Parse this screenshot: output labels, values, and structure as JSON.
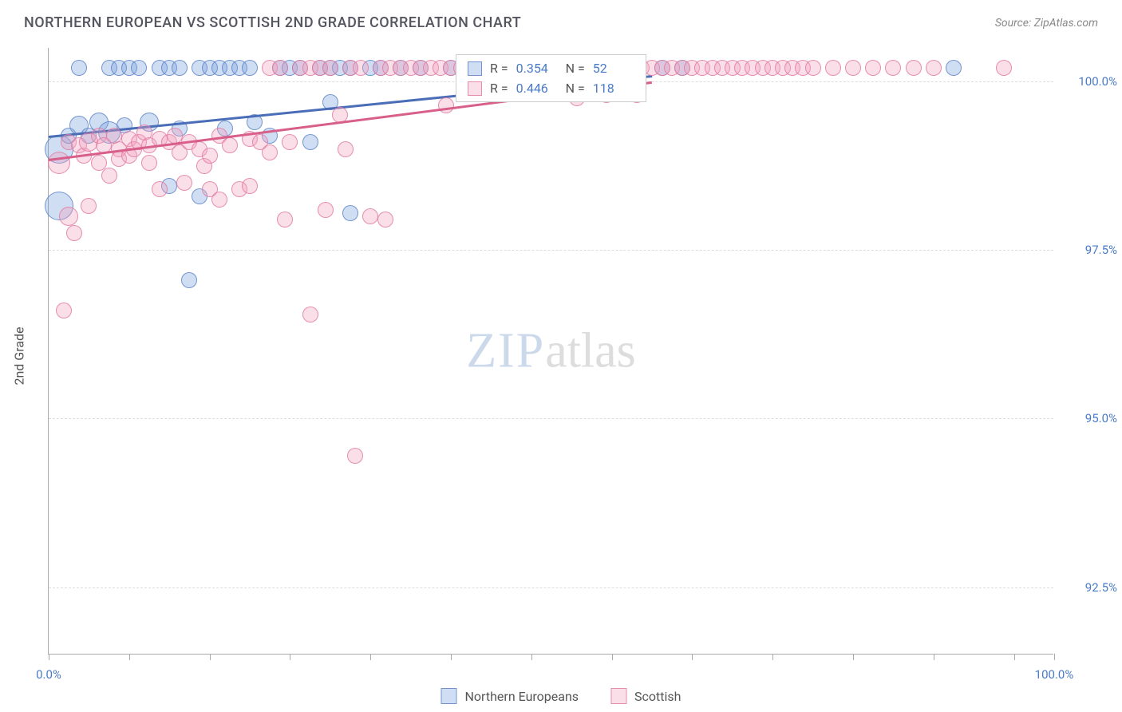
{
  "title": "NORTHERN EUROPEAN VS SCOTTISH 2ND GRADE CORRELATION CHART",
  "source": "Source: ZipAtlas.com",
  "ylabel": "2nd Grade",
  "watermark": {
    "part1": "ZIP",
    "part2": "atlas"
  },
  "chart": {
    "type": "scatter",
    "xlim": [
      0,
      100
    ],
    "ylim": [
      91.5,
      100.5
    ],
    "yticks": [
      {
        "v": 100.0,
        "label": "100.0%"
      },
      {
        "v": 97.5,
        "label": "97.5%"
      },
      {
        "v": 95.0,
        "label": "95.0%"
      },
      {
        "v": 92.5,
        "label": "92.5%"
      }
    ],
    "xticks_major": [
      0,
      100
    ],
    "xtick_labels": {
      "0": "0.0%",
      "100": "100.0%"
    },
    "xticks_minor": [
      8,
      16,
      24,
      32,
      40,
      48,
      56,
      64,
      72,
      80,
      88,
      96
    ],
    "grid_color": "#dddddd",
    "background_color": "#ffffff",
    "series": [
      {
        "name": "Northern Europeans",
        "fill": "rgba(120, 160, 220, 0.35)",
        "stroke": "rgba(90, 130, 200, 0.8)",
        "line_color": "#4a6db8",
        "r_label": "R =",
        "r_value": "0.354",
        "n_label": "N =",
        "n_value": "52",
        "trend": {
          "x1": 0,
          "y1": 99.2,
          "x2": 60,
          "y2": 100.1
        },
        "marker_radius": 10,
        "points": [
          [
            1,
            99.0,
            18
          ],
          [
            1,
            98.15,
            18
          ],
          [
            2,
            99.2,
            10
          ],
          [
            3,
            100.2,
            10
          ],
          [
            3,
            99.35,
            12
          ],
          [
            4,
            99.2,
            10
          ],
          [
            5,
            99.4,
            12
          ],
          [
            6,
            100.2,
            10
          ],
          [
            6,
            99.25,
            14
          ],
          [
            7,
            100.2,
            10
          ],
          [
            7.5,
            99.35,
            10
          ],
          [
            8,
            100.2,
            10
          ],
          [
            9,
            100.2,
            10
          ],
          [
            10,
            99.4,
            12
          ],
          [
            11,
            100.2,
            10
          ],
          [
            12,
            100.2,
            10
          ],
          [
            12,
            98.45,
            10
          ],
          [
            13,
            100.2,
            10
          ],
          [
            13,
            99.3,
            10
          ],
          [
            14,
            97.05,
            10
          ],
          [
            15,
            100.2,
            10
          ],
          [
            15,
            98.3,
            10
          ],
          [
            16,
            100.2,
            10
          ],
          [
            17,
            100.2,
            10
          ],
          [
            17.5,
            99.3,
            10
          ],
          [
            18,
            100.2,
            10
          ],
          [
            19,
            100.2,
            10
          ],
          [
            20,
            100.2,
            10
          ],
          [
            20.5,
            99.4,
            10
          ],
          [
            22,
            99.2,
            10
          ],
          [
            23,
            100.2,
            10
          ],
          [
            24,
            100.2,
            10
          ],
          [
            25,
            100.2,
            10
          ],
          [
            26,
            99.1,
            10
          ],
          [
            27,
            100.2,
            10
          ],
          [
            28,
            100.2,
            10
          ],
          [
            28,
            99.7,
            10
          ],
          [
            29,
            100.2,
            10
          ],
          [
            30,
            100.2,
            10
          ],
          [
            30,
            98.05,
            10
          ],
          [
            32,
            100.2,
            10
          ],
          [
            33,
            100.2,
            10
          ],
          [
            35,
            100.2,
            10
          ],
          [
            37,
            100.2,
            10
          ],
          [
            40,
            100.2,
            10
          ],
          [
            42,
            100.2,
            10
          ],
          [
            44,
            100.2,
            10
          ],
          [
            48,
            100.2,
            10
          ],
          [
            52,
            100.2,
            10
          ],
          [
            61,
            100.2,
            10
          ],
          [
            63,
            100.2,
            10
          ],
          [
            90,
            100.2,
            10
          ]
        ]
      },
      {
        "name": "Scottish",
        "fill": "rgba(240, 160, 190, 0.35)",
        "stroke": "rgba(225, 120, 160, 0.8)",
        "line_color": "#d85f8a",
        "r_label": "R =",
        "r_value": "0.446",
        "n_label": "N =",
        "n_value": "118",
        "trend": {
          "x1": 0,
          "y1": 98.85,
          "x2": 60,
          "y2": 100.0
        },
        "marker_radius": 10,
        "points": [
          [
            1,
            98.8,
            14
          ],
          [
            1.5,
            96.6,
            10
          ],
          [
            2,
            98.0,
            12
          ],
          [
            2,
            99.1,
            10
          ],
          [
            2.5,
            97.75,
            10
          ],
          [
            3,
            99.05,
            10
          ],
          [
            3.5,
            98.9,
            10
          ],
          [
            4,
            99.1,
            12
          ],
          [
            4,
            98.15,
            10
          ],
          [
            5,
            99.2,
            10
          ],
          [
            5,
            98.8,
            10
          ],
          [
            5.5,
            99.05,
            10
          ],
          [
            6,
            98.6,
            10
          ],
          [
            6.5,
            99.2,
            10
          ],
          [
            7,
            99.0,
            10
          ],
          [
            7,
            98.85,
            10
          ],
          [
            8,
            99.15,
            10
          ],
          [
            8,
            98.9,
            10
          ],
          [
            8.5,
            99.0,
            10
          ],
          [
            9,
            99.1,
            10
          ],
          [
            9.5,
            99.25,
            10
          ],
          [
            10,
            99.05,
            10
          ],
          [
            10,
            98.8,
            10
          ],
          [
            11,
            99.15,
            10
          ],
          [
            11,
            98.4,
            10
          ],
          [
            12,
            99.1,
            10
          ],
          [
            12.5,
            99.2,
            10
          ],
          [
            13,
            98.95,
            10
          ],
          [
            13.5,
            98.5,
            10
          ],
          [
            14,
            99.1,
            10
          ],
          [
            15,
            99.0,
            10
          ],
          [
            15.5,
            98.75,
            10
          ],
          [
            16,
            98.9,
            10
          ],
          [
            16,
            98.4,
            10
          ],
          [
            17,
            99.2,
            10
          ],
          [
            17,
            98.25,
            10
          ],
          [
            18,
            99.05,
            10
          ],
          [
            19,
            98.4,
            10
          ],
          [
            20,
            98.45,
            10
          ],
          [
            20,
            99.15,
            10
          ],
          [
            21,
            99.1,
            10
          ],
          [
            22,
            100.2,
            10
          ],
          [
            22,
            98.95,
            10
          ],
          [
            23,
            100.2,
            10
          ],
          [
            23.5,
            97.95,
            10
          ],
          [
            24,
            99.1,
            10
          ],
          [
            25,
            100.2,
            10
          ],
          [
            26,
            100.2,
            10
          ],
          [
            26,
            96.55,
            10
          ],
          [
            27,
            100.2,
            10
          ],
          [
            27.5,
            98.1,
            10
          ],
          [
            28,
            100.2,
            10
          ],
          [
            29,
            99.5,
            10
          ],
          [
            29.5,
            99.0,
            10
          ],
          [
            30,
            100.2,
            10
          ],
          [
            30.5,
            94.45,
            10
          ],
          [
            31,
            100.2,
            10
          ],
          [
            32,
            98.0,
            10
          ],
          [
            33,
            100.2,
            10
          ],
          [
            33.5,
            97.95,
            10
          ],
          [
            34,
            100.2,
            10
          ],
          [
            35,
            100.2,
            10
          ],
          [
            36,
            100.2,
            10
          ],
          [
            37,
            100.2,
            10
          ],
          [
            38,
            100.2,
            10
          ],
          [
            39,
            100.2,
            10
          ],
          [
            39.5,
            99.65,
            10
          ],
          [
            40,
            100.2,
            10
          ],
          [
            41,
            100.2,
            10
          ],
          [
            42,
            100.2,
            10
          ],
          [
            43,
            100.2,
            10
          ],
          [
            44,
            100.2,
            10
          ],
          [
            45,
            100.2,
            10
          ],
          [
            46,
            100.2,
            10
          ],
          [
            47,
            100.2,
            10
          ],
          [
            48,
            100.2,
            10
          ],
          [
            49,
            100.2,
            10
          ],
          [
            50,
            100.2,
            10
          ],
          [
            51,
            100.2,
            10
          ],
          [
            52,
            100.2,
            10
          ],
          [
            52.5,
            99.75,
            10
          ],
          [
            53,
            100.2,
            10
          ],
          [
            54,
            100.2,
            10
          ],
          [
            55,
            100.2,
            10
          ],
          [
            55.5,
            99.8,
            10
          ],
          [
            56,
            100.2,
            10
          ],
          [
            56.5,
            99.85,
            10
          ],
          [
            57,
            100.2,
            10
          ],
          [
            58,
            100.2,
            10
          ],
          [
            58.5,
            99.8,
            10
          ],
          [
            59,
            100.2,
            10
          ],
          [
            60,
            100.2,
            10
          ],
          [
            61,
            100.2,
            10
          ],
          [
            62,
            100.2,
            10
          ],
          [
            63,
            100.2,
            10
          ],
          [
            64,
            100.2,
            10
          ],
          [
            65,
            100.2,
            10
          ],
          [
            66,
            100.2,
            10
          ],
          [
            67,
            100.2,
            10
          ],
          [
            68,
            100.2,
            10
          ],
          [
            69,
            100.2,
            10
          ],
          [
            70,
            100.2,
            10
          ],
          [
            71,
            100.2,
            10
          ],
          [
            72,
            100.2,
            10
          ],
          [
            73,
            100.2,
            10
          ],
          [
            74,
            100.2,
            10
          ],
          [
            75,
            100.2,
            10
          ],
          [
            76,
            100.2,
            10
          ],
          [
            78,
            100.2,
            10
          ],
          [
            80,
            100.2,
            10
          ],
          [
            82,
            100.2,
            10
          ],
          [
            84,
            100.2,
            10
          ],
          [
            86,
            100.2,
            10
          ],
          [
            88,
            100.2,
            10
          ],
          [
            95,
            100.2,
            10
          ]
        ]
      }
    ]
  }
}
